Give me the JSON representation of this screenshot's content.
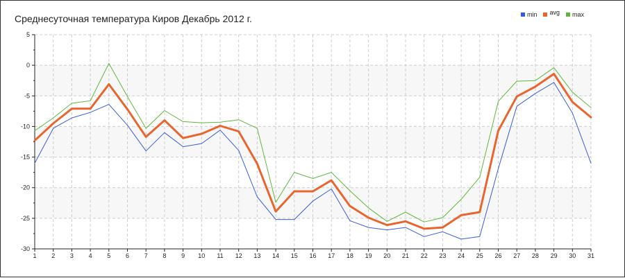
{
  "chart_data": {
    "type": "line",
    "title": "Среднесуточная температура Киров  Декабрь 2012 г.",
    "xlabel": "",
    "ylabel": "",
    "x": [
      1,
      2,
      3,
      4,
      5,
      6,
      7,
      8,
      9,
      10,
      11,
      12,
      13,
      14,
      15,
      16,
      17,
      18,
      19,
      20,
      21,
      22,
      23,
      24,
      25,
      26,
      27,
      28,
      29,
      30,
      31
    ],
    "x_tick_labels": [
      "1",
      "2",
      "3",
      "4",
      "5",
      "6",
      "7",
      "8",
      "9",
      "10",
      "11",
      "12",
      "13",
      "14",
      "15",
      "16",
      "17",
      "18",
      "19",
      "20",
      "21",
      "22",
      "23",
      "24",
      "25",
      "26",
      "27",
      "28",
      "29",
      "30",
      "31"
    ],
    "y_tick_labels": [
      "5",
      "0",
      "-5",
      "-10",
      "-15",
      "-20",
      "-25",
      "-30"
    ],
    "y_ticks": [
      5,
      0,
      -5,
      -10,
      -15,
      -20,
      -25,
      -30
    ],
    "ylim": [
      -30,
      5
    ],
    "xlim": [
      1,
      31
    ],
    "grid": true,
    "legend_position": "top-right",
    "series": [
      {
        "name": "min",
        "color": "#3a5bd9",
        "values": [
          -16,
          -10.3,
          -8.6,
          -7.7,
          -6.4,
          -9.8,
          -14,
          -11,
          -13.3,
          -12.8,
          -10.6,
          -13.9,
          -21.5,
          -25.2,
          -25.2,
          -22.2,
          -20.2,
          -25.4,
          -26.5,
          -26.9,
          -26.5,
          -28,
          -27.2,
          -28.4,
          -28,
          -16.9,
          -6.7,
          -4.6,
          -2.8,
          -7.8,
          -16
        ],
        "line_width": 1
      },
      {
        "name": "avg",
        "color": "#e8652e",
        "values": [
          -12.3,
          -9.5,
          -7.1,
          -7.1,
          -3.1,
          -7.2,
          -11.7,
          -9,
          -11.9,
          -11.2,
          -9.9,
          -10.8,
          -16.1,
          -23.9,
          -20.6,
          -20.6,
          -18.8,
          -23,
          -24.9,
          -26.1,
          -25.5,
          -26.7,
          -26.5,
          -24.5,
          -24,
          -10.7,
          -5.1,
          -3.5,
          -1.4,
          -6,
          -8.5
        ],
        "line_width": 3
      },
      {
        "name": "max",
        "color": "#5cb83a",
        "values": [
          -10.7,
          -8.6,
          -6.2,
          -5.8,
          0.3,
          -5.1,
          -10.3,
          -7.4,
          -9.2,
          -9.4,
          -9.3,
          -8.9,
          -10.3,
          -22.4,
          -17.5,
          -18.5,
          -17.5,
          -20.5,
          -23.3,
          -25.5,
          -24,
          -25.6,
          -24.9,
          -21.9,
          -18.3,
          -5.9,
          -2.6,
          -2.5,
          -0.4,
          -4.4,
          -6.9
        ],
        "line_width": 1
      }
    ],
    "colors": {
      "band": "#f7f7f7",
      "grid": "#cccccc",
      "axis": "#222222",
      "zero_line": "#e4e4e4"
    }
  }
}
